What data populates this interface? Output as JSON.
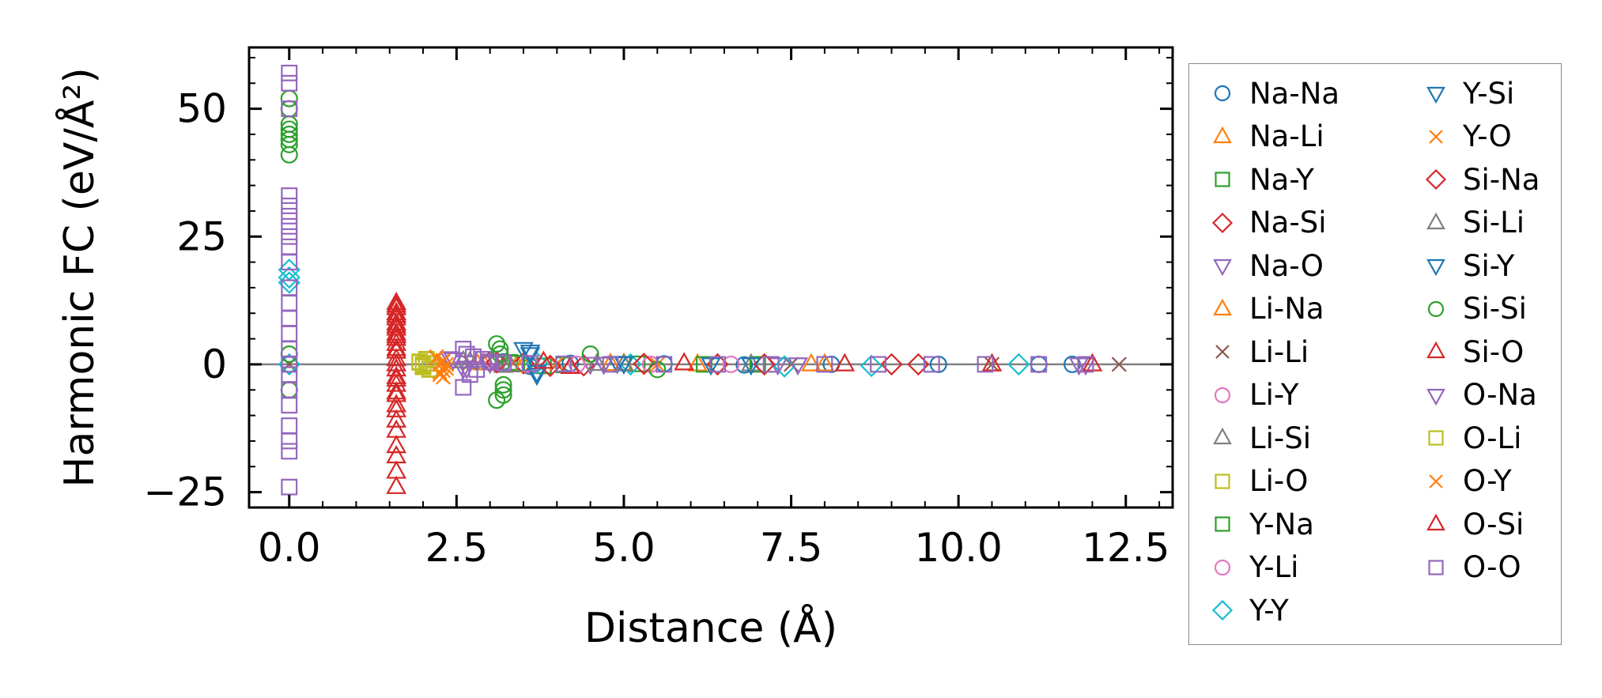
{
  "chart_data": {
    "type": "scatter",
    "title": "",
    "xlabel": "Distance (Å)",
    "ylabel": "Harmonic FC (eV/Å²)",
    "xlim": [
      -0.6,
      13.2
    ],
    "ylim": [
      -28,
      62
    ],
    "x_ticks": [
      0.0,
      2.5,
      5.0,
      7.5,
      10.0,
      12.5
    ],
    "x_tick_labels": [
      "0.0",
      "2.5",
      "5.0",
      "7.5",
      "10.0",
      "12.5"
    ],
    "y_ticks": [
      -25,
      0,
      25,
      50
    ],
    "y_tick_labels": [
      "−25",
      "0",
      "25",
      "50"
    ],
    "grid": false,
    "zero_line": true,
    "legend": "outside-right",
    "series": [
      {
        "name": "Na-Na",
        "marker": "circle",
        "color": "#1f77b4",
        "x": [
          0.0,
          3.2,
          3.6,
          4.2,
          5.6,
          6.8,
          8.1,
          9.7,
          11.2,
          11.7
        ],
        "y": [
          0.0,
          0.5,
          -0.4,
          0.2,
          0.1,
          -0.1,
          0.0,
          0.0,
          0.0,
          0.0
        ]
      },
      {
        "name": "Na-Li",
        "marker": "triangle-up",
        "color": "#ff7f0e",
        "x": [
          2.8,
          3.4,
          4.8,
          6.1,
          8.0
        ],
        "y": [
          0.3,
          -0.2,
          0.1,
          0.0,
          0.0
        ]
      },
      {
        "name": "Na-Y",
        "marker": "square",
        "color": "#2ca02c",
        "x": [
          3.3,
          3.8,
          5.2,
          7.0
        ],
        "y": [
          0.4,
          -0.3,
          0.1,
          0.0
        ]
      },
      {
        "name": "Na-Si",
        "marker": "diamond",
        "color": "#d62728",
        "x": [
          3.0,
          3.5,
          4.4,
          6.4,
          9.0
        ],
        "y": [
          0.5,
          0.2,
          -0.2,
          0.0,
          0.0
        ]
      },
      {
        "name": "Na-O",
        "marker": "triangle-down",
        "color": "#9467bd",
        "x": [
          2.4,
          2.6,
          3.1,
          4.5,
          7.3,
          11.9
        ],
        "y": [
          1.2,
          -0.8,
          0.4,
          0.1,
          0.0,
          0.0
        ]
      },
      {
        "name": "Li-Na",
        "marker": "triangle-up",
        "color": "#ff7f0e",
        "x": [
          2.9,
          3.5,
          5.0,
          7.8
        ],
        "y": [
          0.2,
          -0.2,
          0.1,
          0.0
        ]
      },
      {
        "name": "Li-Li",
        "marker": "x",
        "color": "#8c564b",
        "x": [
          0.0,
          2.7,
          4.0,
          7.5,
          10.5,
          12.4
        ],
        "y": [
          0.0,
          0.3,
          0.0,
          0.0,
          0.0,
          0.0
        ]
      },
      {
        "name": "Li-Y",
        "marker": "circle",
        "color": "#e377c2",
        "x": [
          3.1,
          3.6,
          5.4
        ],
        "y": [
          0.3,
          -0.1,
          0.0
        ]
      },
      {
        "name": "Li-Si",
        "marker": "triangle-up",
        "color": "#7f7f7f",
        "x": [
          2.6,
          3.2,
          4.6,
          6.9
        ],
        "y": [
          0.6,
          -0.3,
          0.1,
          0.0
        ]
      },
      {
        "name": "Li-O",
        "marker": "square",
        "color": "#bcbd22",
        "x": [
          1.95,
          2.0,
          2.05,
          2.1,
          2.0,
          2.05
        ],
        "y": [
          0.5,
          -0.5,
          1.0,
          -1.0,
          0.0,
          0.2
        ]
      },
      {
        "name": "Y-Na",
        "marker": "square",
        "color": "#2ca02c",
        "x": [
          3.4,
          4.1,
          6.2
        ],
        "y": [
          0.2,
          -0.1,
          0.0
        ]
      },
      {
        "name": "Y-Li",
        "marker": "circle",
        "color": "#e377c2",
        "x": [
          3.2,
          4.3,
          6.6
        ],
        "y": [
          0.2,
          0.0,
          0.0
        ]
      },
      {
        "name": "Y-Y",
        "marker": "diamond",
        "color": "#17becf",
        "x": [
          0.0,
          0.0,
          0.0,
          0.0,
          3.7,
          5.1,
          7.4,
          8.7,
          10.9
        ],
        "y": [
          17.0,
          18.5,
          16.0,
          0.0,
          0.3,
          0.0,
          -0.4,
          -0.3,
          0.0
        ]
      },
      {
        "name": "Y-Si",
        "marker": "triangle-down",
        "color": "#1f77b4",
        "x": [
          3.5,
          3.6,
          3.7,
          4.9,
          6.3
        ],
        "y": [
          3.0,
          2.0,
          -2.0,
          0.3,
          0.0
        ]
      },
      {
        "name": "Y-O",
        "marker": "x",
        "color": "#ff7f0e",
        "x": [
          2.2,
          2.25,
          2.3,
          2.35,
          2.25,
          2.3,
          4.0,
          5.5
        ],
        "y": [
          1.5,
          -1.5,
          0.8,
          -0.8,
          0.0,
          -2.5,
          0.2,
          0.0
        ]
      },
      {
        "name": "Si-Na",
        "marker": "diamond",
        "color": "#d62728",
        "x": [
          3.1,
          3.9,
          5.3,
          7.1,
          9.4
        ],
        "y": [
          0.4,
          -0.3,
          0.1,
          0.0,
          0.0
        ]
      },
      {
        "name": "Si-Li",
        "marker": "triangle-up",
        "color": "#7f7f7f",
        "x": [
          2.7,
          3.3,
          5.0
        ],
        "y": [
          0.5,
          -0.2,
          0.0
        ]
      },
      {
        "name": "Si-Y",
        "marker": "triangle-down",
        "color": "#1f77b4",
        "x": [
          3.6,
          3.7,
          5.0,
          6.9
        ],
        "y": [
          2.5,
          -1.5,
          0.2,
          0.0
        ]
      },
      {
        "name": "Si-Si",
        "marker": "circle",
        "color": "#2ca02c",
        "x": [
          0.0,
          0.0,
          0.0,
          0.0,
          0.0,
          0.0,
          0.0,
          0.0,
          0.0,
          0.0,
          3.1,
          3.15,
          3.2,
          3.1,
          3.2,
          3.15,
          3.2,
          4.5,
          5.5
        ],
        "y": [
          52.0,
          50.0,
          47.0,
          46.0,
          45.0,
          44.0,
          43.0,
          41.0,
          2.0,
          -5.0,
          4.0,
          3.0,
          -6.0,
          -7.0,
          -5.0,
          2.0,
          -4.0,
          2.0,
          -1.0
        ]
      },
      {
        "name": "Si-O",
        "marker": "triangle-up",
        "color": "#d62728",
        "x": [
          1.6,
          1.6,
          1.6,
          1.6,
          1.6,
          1.6,
          1.6,
          1.6,
          1.6,
          1.6,
          1.6,
          1.6,
          1.6,
          1.6,
          1.6,
          1.6,
          1.6,
          1.6,
          1.6,
          3.8,
          4.2,
          5.9,
          8.3,
          10.5,
          12.0
        ],
        "y": [
          12.0,
          11.0,
          10.0,
          9.0,
          8.0,
          7.0,
          6.0,
          5.0,
          4.0,
          2.5,
          1.0,
          -1.0,
          -2.5,
          -4.0,
          -6.0,
          -9.0,
          -13.0,
          -18.0,
          -24.0,
          0.5,
          -0.5,
          0.2,
          0.0,
          0.0,
          0.0
        ]
      },
      {
        "name": "O-Na",
        "marker": "triangle-down",
        "color": "#9467bd",
        "x": [
          2.45,
          2.65,
          3.0,
          4.7,
          7.6,
          11.8
        ],
        "y": [
          1.0,
          -0.7,
          0.3,
          0.1,
          0.0,
          0.0
        ]
      },
      {
        "name": "O-Li",
        "marker": "square",
        "color": "#bcbd22",
        "x": [
          1.95,
          2.0,
          2.05,
          2.1,
          2.0
        ],
        "y": [
          0.4,
          -0.4,
          0.9,
          -0.9,
          -0.1
        ]
      },
      {
        "name": "O-Y",
        "marker": "x",
        "color": "#ff7f0e",
        "x": [
          2.2,
          2.3,
          2.3,
          2.25,
          2.35
        ],
        "y": [
          1.2,
          -1.2,
          0.6,
          -2.0,
          0.0
        ]
      },
      {
        "name": "O-Si",
        "marker": "triangle-up",
        "color": "#d62728",
        "x": [
          1.6,
          1.6,
          1.6,
          1.6,
          1.6,
          1.6,
          1.6,
          1.6,
          1.6,
          1.6,
          1.6,
          1.6
        ],
        "y": [
          11.5,
          9.5,
          7.5,
          5.5,
          3.0,
          0.0,
          -3.0,
          -5.5,
          -8.0,
          -11.0,
          -16.0,
          -21.0
        ]
      },
      {
        "name": "O-O",
        "marker": "square",
        "color": "#9467bd",
        "x": [
          0.0,
          0.0,
          0.0,
          0.0,
          0.0,
          0.0,
          0.0,
          0.0,
          0.0,
          0.0,
          0.0,
          0.0,
          0.0,
          0.0,
          0.0,
          0.0,
          0.0,
          0.0,
          0.0,
          0.0,
          0.0,
          0.0,
          0.0,
          2.6,
          2.6,
          2.65,
          2.7,
          2.75,
          2.8,
          2.9,
          3.0,
          3.2,
          3.6,
          4.1,
          4.8,
          5.6,
          6.4,
          7.2,
          8.0,
          8.8,
          9.6,
          10.4,
          11.2,
          11.9
        ],
        "y": [
          57.0,
          55.0,
          50.0,
          33.0,
          31.0,
          29.0,
          27.0,
          25.0,
          23.0,
          20.0,
          15.0,
          12.0,
          9.0,
          6.0,
          3.0,
          0.0,
          -2.0,
          -5.0,
          -8.0,
          -12.0,
          -15.0,
          -17.0,
          -24.0,
          3.0,
          -4.5,
          2.0,
          -2.0,
          1.5,
          -1.0,
          1.0,
          0.5,
          0.3,
          0.2,
          0.1,
          0.0,
          0.0,
          0.0,
          0.0,
          0.0,
          0.0,
          0.0,
          0.0,
          0.0,
          0.0
        ]
      }
    ]
  }
}
